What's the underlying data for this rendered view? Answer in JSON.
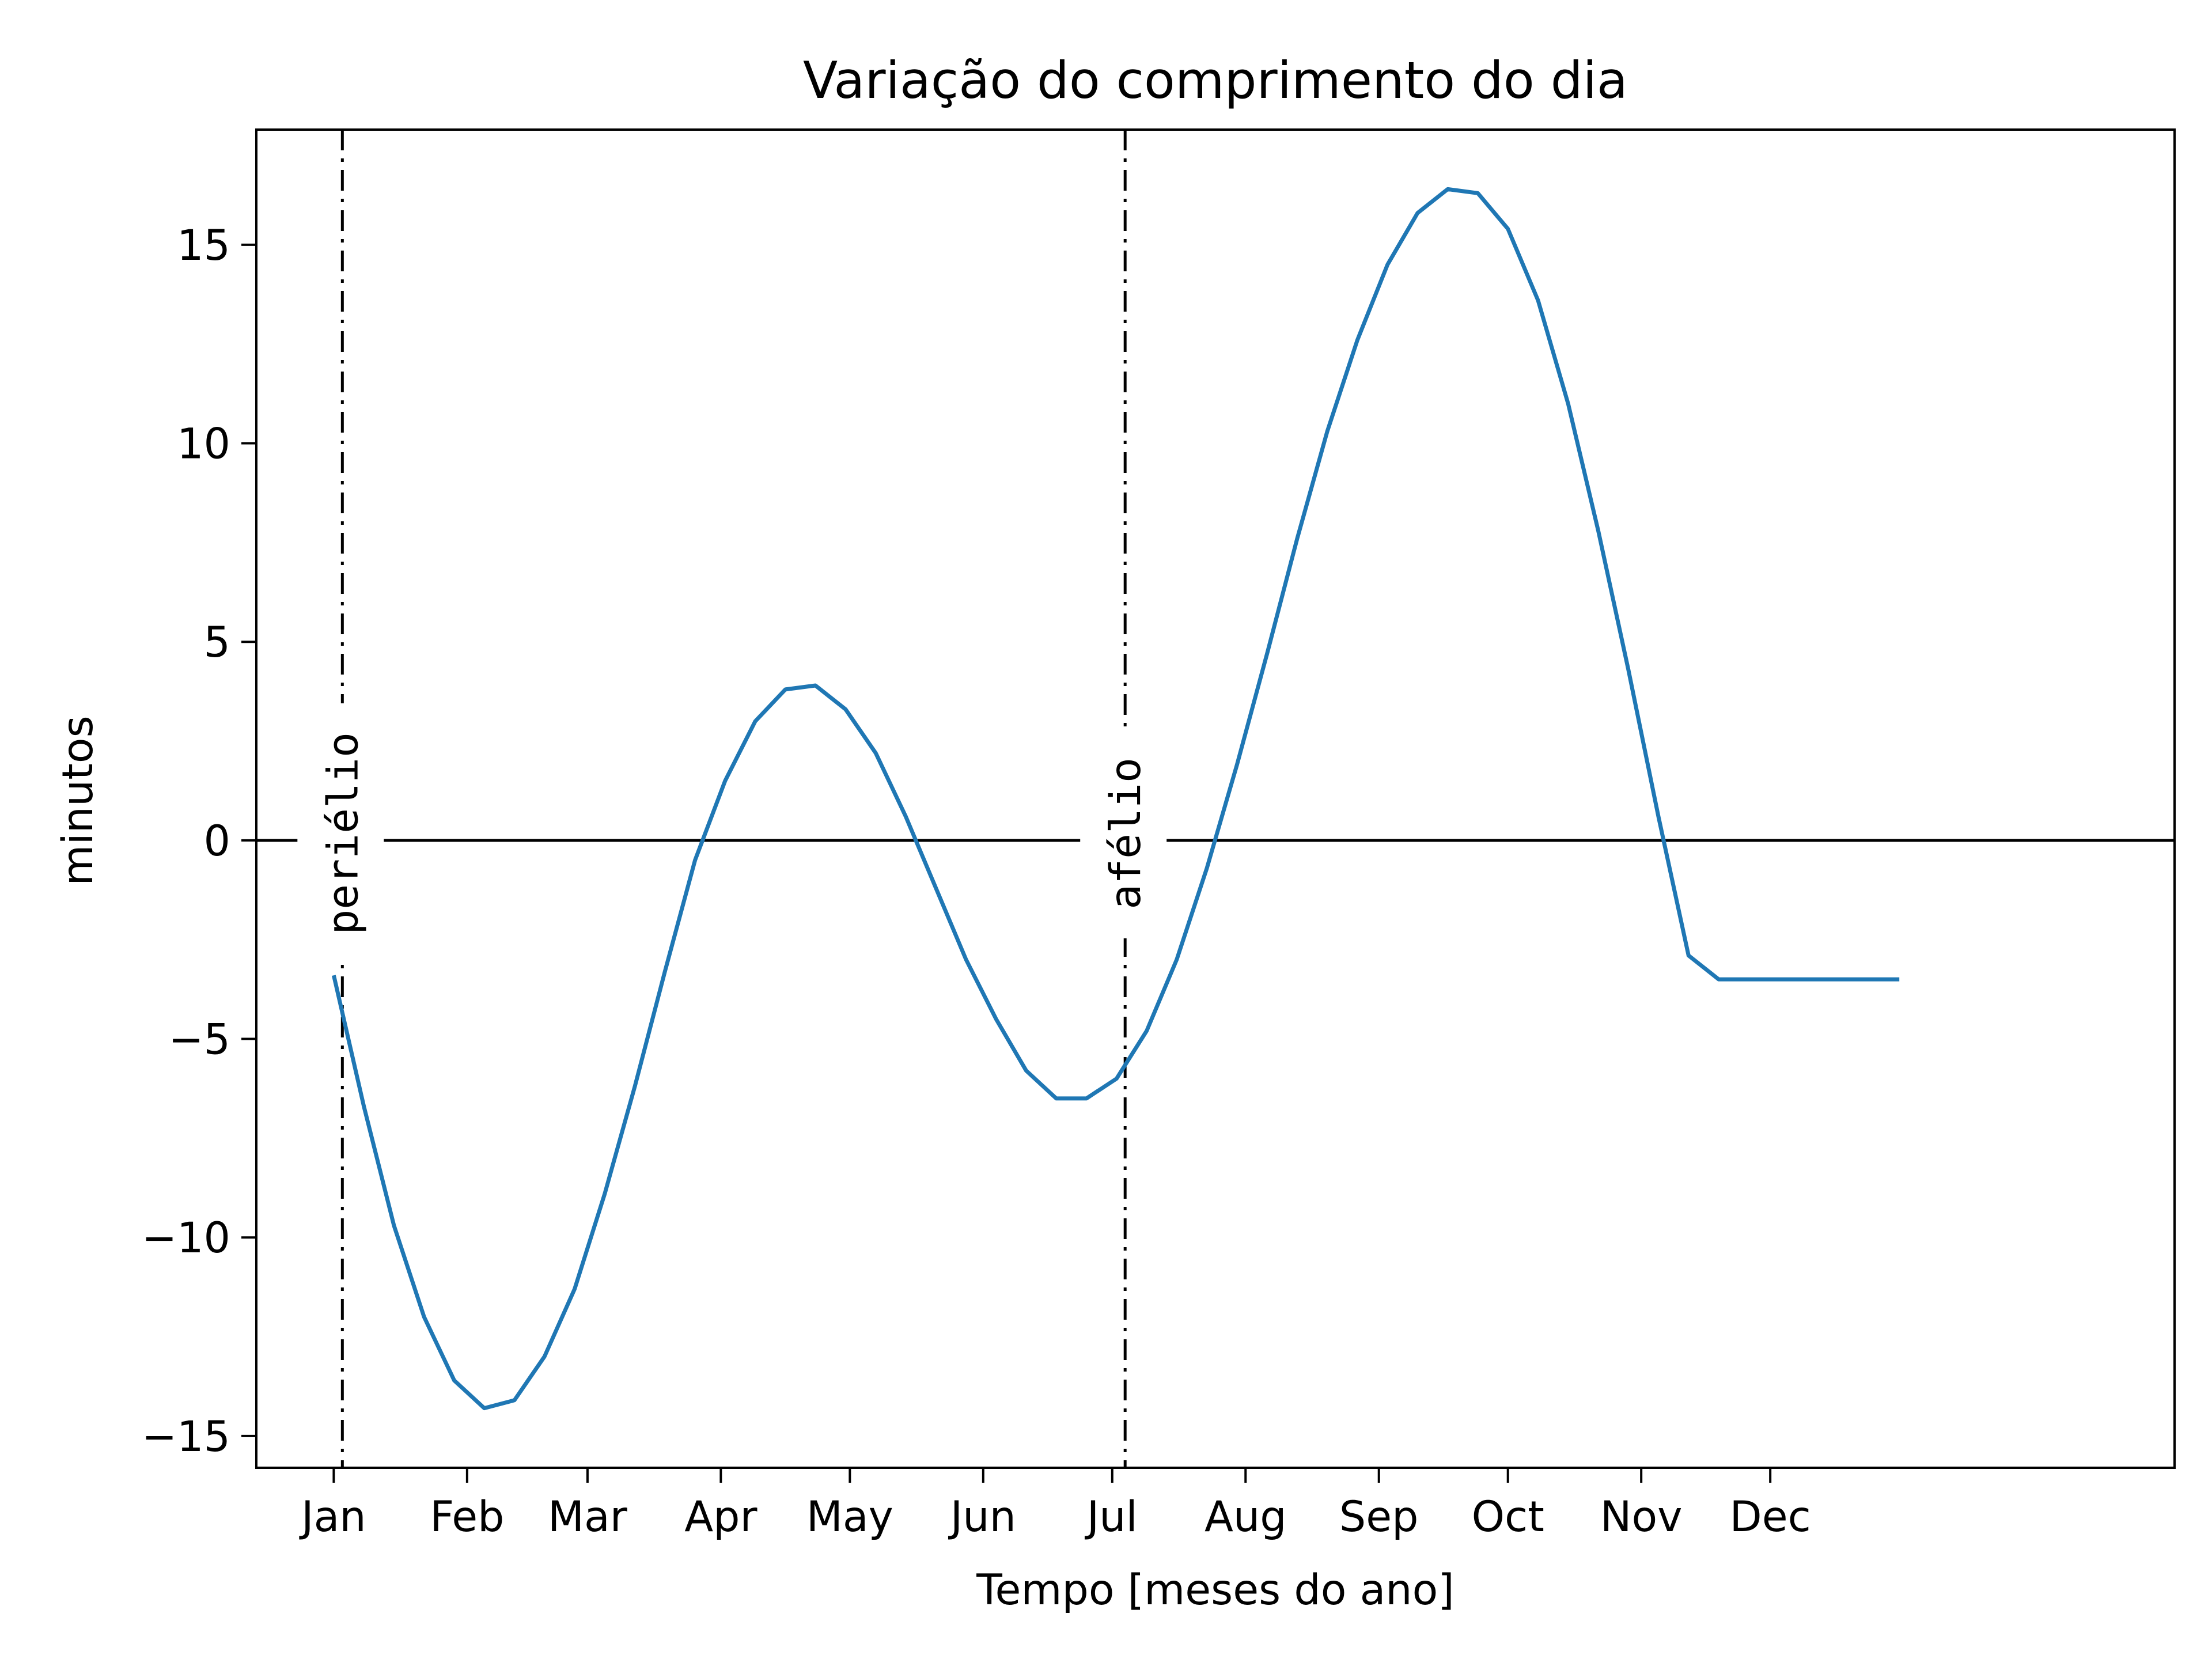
{
  "chart_data": {
    "type": "line",
    "title": "Variação do comprimento do dia",
    "xlabel": "Tempo [meses do ano]",
    "ylabel": "minutos",
    "ylim": [
      -15.8,
      17.9
    ],
    "xlim": [
      -18,
      428
    ],
    "x_unit": "day of year",
    "x_ticks": [
      {
        "label": "Jan",
        "day": 0
      },
      {
        "label": "Feb",
        "day": 31
      },
      {
        "label": "Mar",
        "day": 59
      },
      {
        "label": "Apr",
        "day": 90
      },
      {
        "label": "May",
        "day": 120
      },
      {
        "label": "Jun",
        "day": 151
      },
      {
        "label": "Jul",
        "day": 181
      },
      {
        "label": "Aug",
        "day": 212
      },
      {
        "label": "Sep",
        "day": 243
      },
      {
        "label": "Oct",
        "day": 273
      },
      {
        "label": "Nov",
        "day": 304
      },
      {
        "label": "Dec",
        "day": 334
      }
    ],
    "y_ticks": [
      -15,
      -10,
      -5,
      0,
      5,
      10,
      15
    ],
    "series": [
      {
        "color": "#1f77b4",
        "x": [
          0,
          7,
          14,
          21,
          28,
          35,
          42,
          49,
          56,
          63,
          70,
          77,
          84,
          91,
          98,
          105,
          112,
          119,
          126,
          133,
          140,
          147,
          154,
          161,
          168,
          175,
          182,
          189,
          196,
          203,
          210,
          217,
          224,
          231,
          238,
          245,
          252,
          259,
          266,
          273,
          280,
          287,
          294,
          301,
          308,
          315,
          322,
          329,
          336,
          343,
          350,
          357,
          364
        ],
        "y": [
          -3.4,
          -6.7,
          -9.7,
          -12.0,
          -13.6,
          -14.3,
          -14.1,
          -13.0,
          -11.3,
          -8.9,
          -6.2,
          -3.3,
          -0.5,
          1.5,
          3.0,
          3.8,
          3.9,
          3.3,
          2.2,
          0.6,
          -1.2,
          -3.0,
          -4.5,
          -5.8,
          -6.5,
          -6.5,
          -6.0,
          -4.8,
          -3.0,
          -0.7,
          1.9,
          4.7,
          7.6,
          10.3,
          12.6,
          14.5,
          15.8,
          16.4,
          16.3,
          15.4,
          13.6,
          11.0,
          7.8,
          4.3,
          0.6,
          -2.9,
          -3.5,
          -3.5,
          -3.5,
          -3.5,
          -3.5,
          -3.5,
          -3.5
        ]
      }
    ],
    "reference_lines": [
      {
        "orientation": "horizontal",
        "y": 0,
        "style": "solid",
        "color": "#000000"
      },
      {
        "orientation": "vertical",
        "x": 2,
        "style": "dashdot",
        "color": "#000000",
        "label": "periélio"
      },
      {
        "orientation": "vertical",
        "x": 184,
        "style": "dashdot",
        "color": "#000000",
        "label": "afélio"
      }
    ],
    "grid": false,
    "legend": "none"
  }
}
